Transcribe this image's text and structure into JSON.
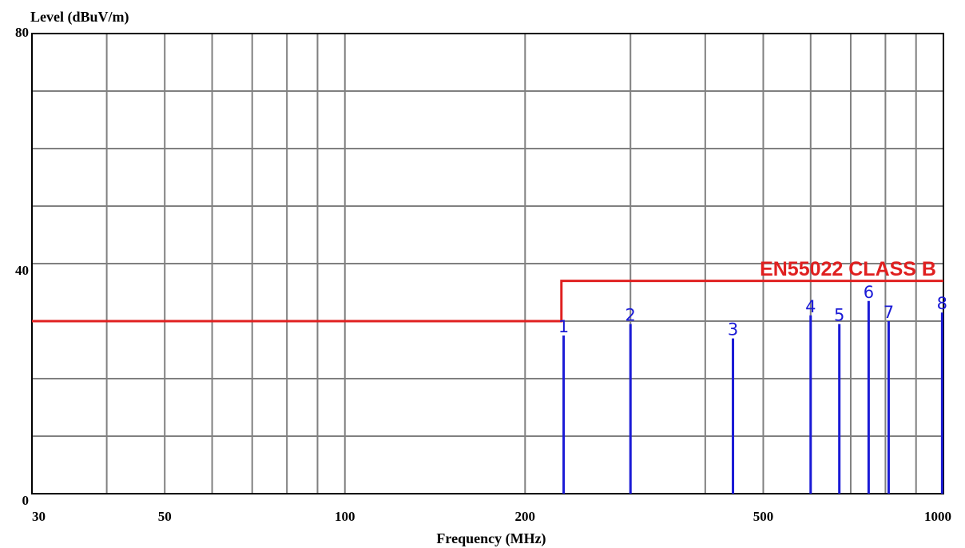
{
  "chart_data": {
    "type": "spectrum",
    "ylabel": "Level (dBuV/m)",
    "xlabel": "Frequency (MHz)",
    "x_scale": "log",
    "xlim": [
      30,
      1000
    ],
    "ylim": [
      0,
      80
    ],
    "x_ticks": [
      {
        "value": 30,
        "label": "30"
      },
      {
        "value": 50,
        "label": "50"
      },
      {
        "value": 100,
        "label": "100"
      },
      {
        "value": 200,
        "label": "200"
      },
      {
        "value": 500,
        "label": "500"
      },
      {
        "value": 1000,
        "label": "1000"
      }
    ],
    "y_ticks": [
      {
        "value": 0,
        "label": "0"
      },
      {
        "value": 40,
        "label": "40"
      },
      {
        "value": 80,
        "label": "80"
      }
    ],
    "x_gridlines": [
      30,
      40,
      50,
      60,
      70,
      80,
      90,
      100,
      200,
      300,
      400,
      500,
      600,
      700,
      800,
      900,
      1000
    ],
    "y_gridlines": [
      0,
      10,
      20,
      30,
      40,
      50,
      60,
      70,
      80
    ],
    "grid": true,
    "limit_line": {
      "label": "EN55022 CLASS B",
      "color": "#e02020",
      "segments": [
        {
          "x": [
            30,
            230
          ],
          "y": 30
        },
        {
          "x": [
            230,
            1000
          ],
          "y": 37
        }
      ]
    },
    "peaks": {
      "color": "#1a1ad6",
      "points": [
        {
          "label": "1",
          "x": 232,
          "y": 27.5
        },
        {
          "label": "2",
          "x": 300,
          "y": 29.5
        },
        {
          "label": "3",
          "x": 445,
          "y": 27.0
        },
        {
          "label": "4",
          "x": 600,
          "y": 31.0
        },
        {
          "label": "5",
          "x": 670,
          "y": 29.5
        },
        {
          "label": "6",
          "x": 750,
          "y": 33.5
        },
        {
          "label": "7",
          "x": 810,
          "y": 30.0
        },
        {
          "label": "8",
          "x": 995,
          "y": 31.5
        }
      ]
    }
  }
}
